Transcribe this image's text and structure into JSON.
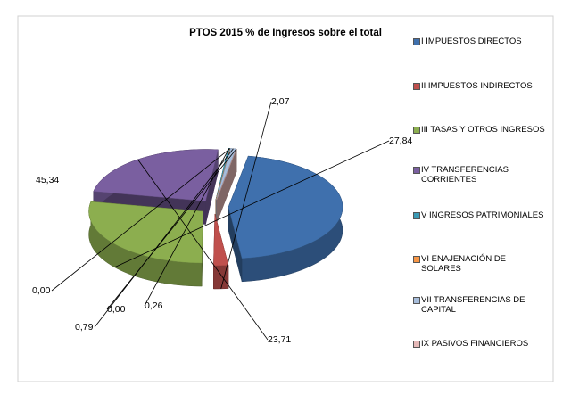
{
  "chart_data": {
    "type": "pie",
    "title": "PTOS 2015  % de Ingresos sobre el total",
    "categories": [
      "I IMPUESTOS DIRECTOS",
      "II IMPUESTOS INDIRECTOS",
      "III TASAS Y OTROS INGRESOS",
      "IV TRANSFERENCIAS CORRIENTES",
      "V INGRESOS PATRIMONIALES",
      "VI ENAJENACIÓN DE SOLARES",
      "VII TRANSFERENCIAS DE CAPITAL",
      "IX PASIVOS FINANCIEROS"
    ],
    "values": [
      45.34,
      2.07,
      27.84,
      23.71,
      0.26,
      0.0,
      0.79,
      0.0
    ],
    "value_labels": [
      "45,34",
      "2,07",
      "27,84",
      "23,71",
      "0,26",
      "0,00",
      "0,79",
      "0,00"
    ],
    "colors": [
      "#3f70ad",
      "#c0504d",
      "#8cae4f",
      "#7a5fa0",
      "#3a9ab5",
      "#f79646",
      "#a7bddb",
      "#e6b9b8"
    ],
    "legend": "right"
  }
}
